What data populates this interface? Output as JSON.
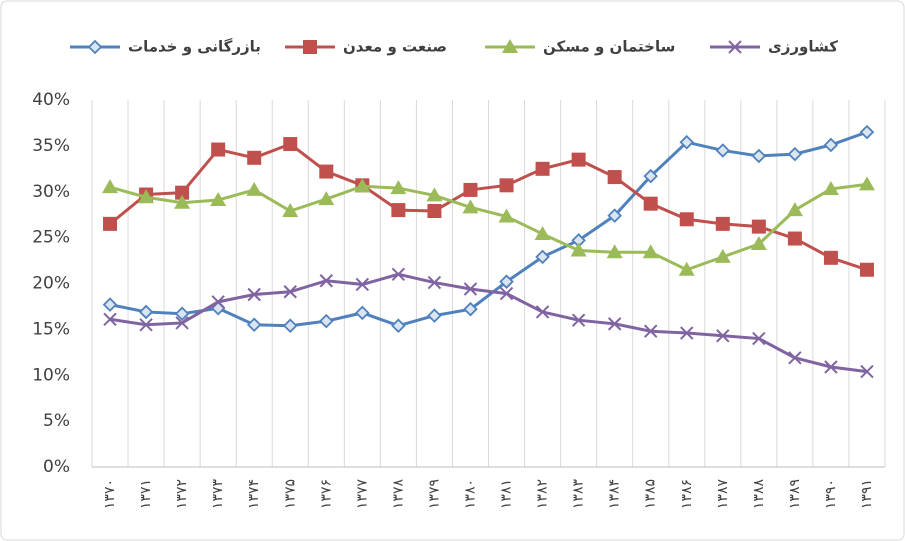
{
  "chart_data": {
    "type": "line",
    "categories": [
      "۱۳۷۰",
      "۱۳۷۱",
      "۱۳۷۲",
      "۱۳۷۳",
      "۱۳۷۴",
      "۱۳۷۵",
      "۱۳۷۶",
      "۱۳۷۷",
      "۱۳۷۸",
      "۱۳۷۹",
      "۱۳۸۰",
      "۱۳۸۱",
      "۱۳۸۲",
      "۱۳۸۳",
      "۱۳۸۴",
      "۱۳۸۵",
      "۱۳۸۶",
      "۱۳۸۷",
      "۱۳۸۸",
      "۱۳۸۹",
      "۱۳۹۰",
      "۱۳۹۱"
    ],
    "series": [
      {
        "name": "بازرگانی و خدمات",
        "color": "#4f81bd",
        "marker": "diamond",
        "values": [
          17.7,
          16.9,
          16.7,
          17.3,
          15.5,
          15.4,
          15.9,
          16.8,
          15.4,
          16.5,
          17.2,
          20.2,
          22.9,
          24.7,
          27.4,
          31.7,
          35.4,
          34.5,
          33.9,
          34.1,
          35.1,
          36.5
        ]
      },
      {
        "name": "صنعت و معدن",
        "color": "#c0504d",
        "marker": "square",
        "values": [
          26.5,
          29.7,
          29.9,
          34.6,
          33.7,
          35.2,
          32.2,
          30.7,
          28.0,
          27.9,
          30.2,
          30.7,
          32.5,
          33.5,
          31.6,
          28.7,
          27.0,
          26.5,
          26.2,
          24.9,
          22.8,
          21.5
        ]
      },
      {
        "name": "ساختمان و مسکن",
        "color": "#9bbb59",
        "marker": "triangle",
        "values": [
          30.5,
          29.4,
          28.8,
          29.1,
          30.2,
          27.9,
          29.2,
          30.6,
          30.4,
          29.6,
          28.3,
          27.3,
          25.4,
          23.6,
          23.4,
          23.4,
          21.5,
          22.9,
          24.3,
          28.0,
          30.3,
          30.8
        ]
      },
      {
        "name": "کشاورزی",
        "color": "#8064a2",
        "marker": "x",
        "values": [
          16.1,
          15.5,
          15.7,
          18.0,
          18.8,
          19.1,
          20.3,
          19.9,
          21.0,
          20.1,
          19.4,
          18.9,
          16.9,
          16.0,
          15.6,
          14.8,
          14.6,
          14.3,
          14.0,
          11.9,
          10.9,
          10.4
        ]
      }
    ],
    "ylim": [
      0,
      40
    ],
    "yticks": [
      {
        "value": 0,
        "label": "0%"
      },
      {
        "value": 5,
        "label": "5%"
      },
      {
        "value": 10,
        "label": "10%"
      },
      {
        "value": 15,
        "label": "15%"
      },
      {
        "value": 20,
        "label": "20%"
      },
      {
        "value": 25,
        "label": "25%"
      },
      {
        "value": 30,
        "label": "30%"
      },
      {
        "value": 35,
        "label": "35%"
      },
      {
        "value": 40,
        "label": "40%"
      }
    ],
    "grid": "x",
    "legend": "top"
  }
}
